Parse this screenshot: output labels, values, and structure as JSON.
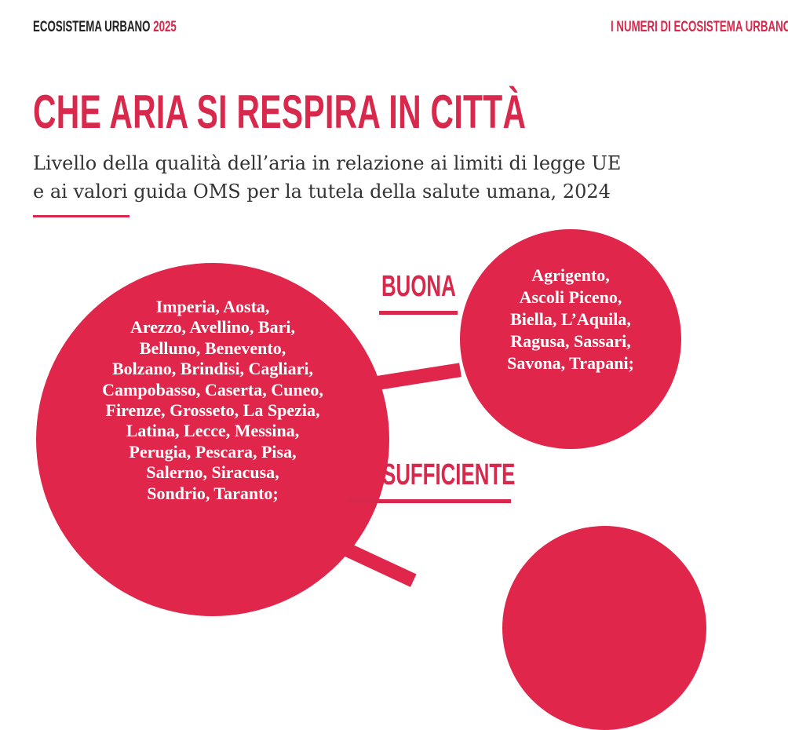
{
  "header": {
    "publication": "ECOSISTEMA URBANO",
    "year": "2025",
    "section": "I NUMERI DI ECOSISTEMA URBANO"
  },
  "title": "CHE ARIA SI RESPIRA IN CITTÀ",
  "subtitle_lines": [
    "Livello della qualità dell’aria in relazione ai limiti di legge UE",
    "e ai valori guida OMS per la tutela della salute umana, 2024"
  ],
  "categories": [
    {
      "label": "BUONA",
      "cities_lines": [
        "Agrigento,",
        "Ascoli Piceno,",
        "Biella, L’Aquila,",
        "Ragusa, Sassari,",
        "Savona, Trapani;"
      ]
    },
    {
      "label": "SUFFICIENTE",
      "cities_lines": [
        "Imperia, Aosta,",
        "Arezzo, Avellino, Bari,",
        "Belluno, Benevento,",
        "Bolzano, Brindisi, Cagliari,",
        "Campobasso, Caserta, Cuneo,",
        "Firenze, Grosseto, La Spezia,",
        "Latina, Lecce, Messina,",
        "Perugia, Pescara, Pisa,",
        "Salerno, Siracusa,",
        "Sondrio, Taranto;"
      ]
    }
  ],
  "colors": {
    "accent": "#e0264a",
    "text": "#333333"
  }
}
